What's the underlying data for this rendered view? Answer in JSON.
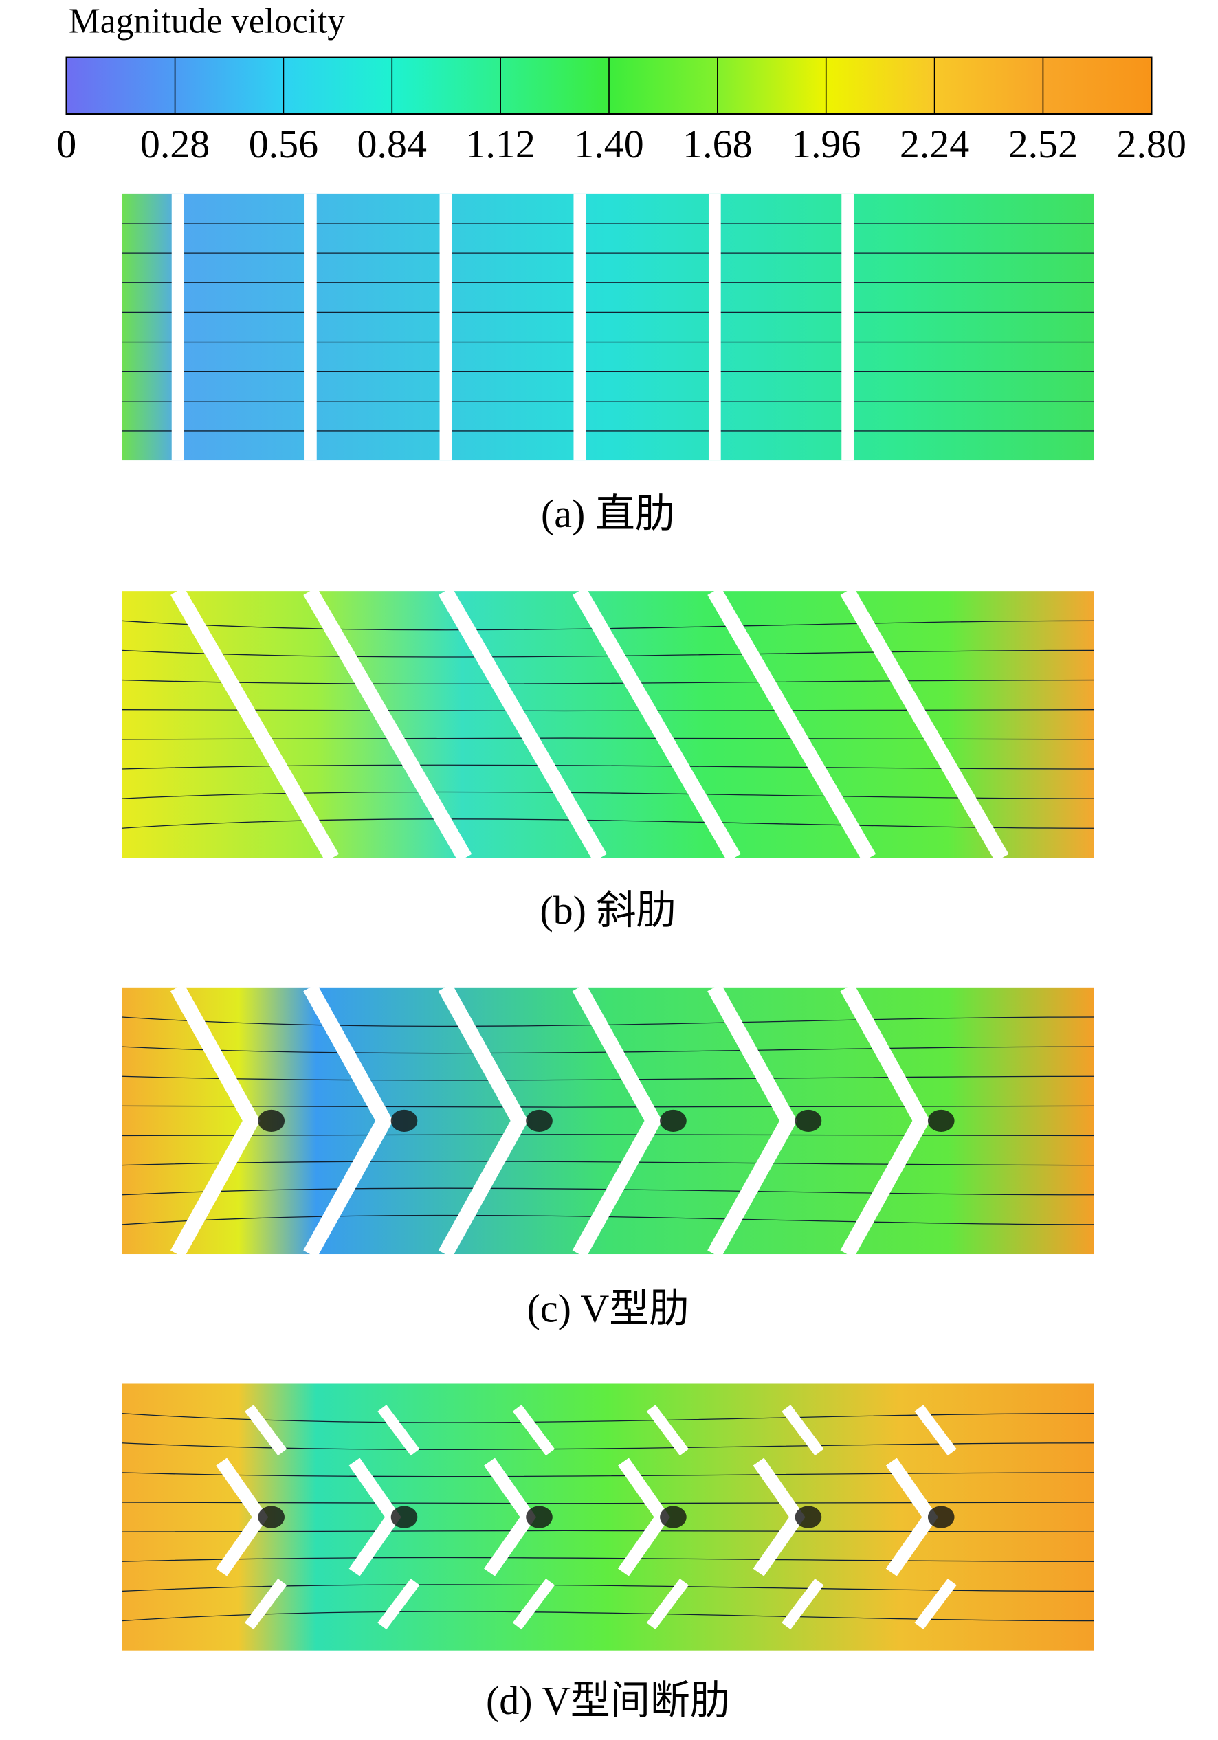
{
  "colorbar": {
    "title": "Magnitude velocity",
    "ticks": [
      "0",
      "0.28",
      "0.56",
      "0.84",
      "1.12",
      "1.40",
      "1.68",
      "1.96",
      "2.24",
      "2.52",
      "2.80"
    ]
  },
  "panels": [
    {
      "caption": "(a) 直肋"
    },
    {
      "caption": "(b) 斜肋"
    },
    {
      "caption": "(c) V型肋"
    },
    {
      "caption": "(d) V型间断肋"
    }
  ]
}
